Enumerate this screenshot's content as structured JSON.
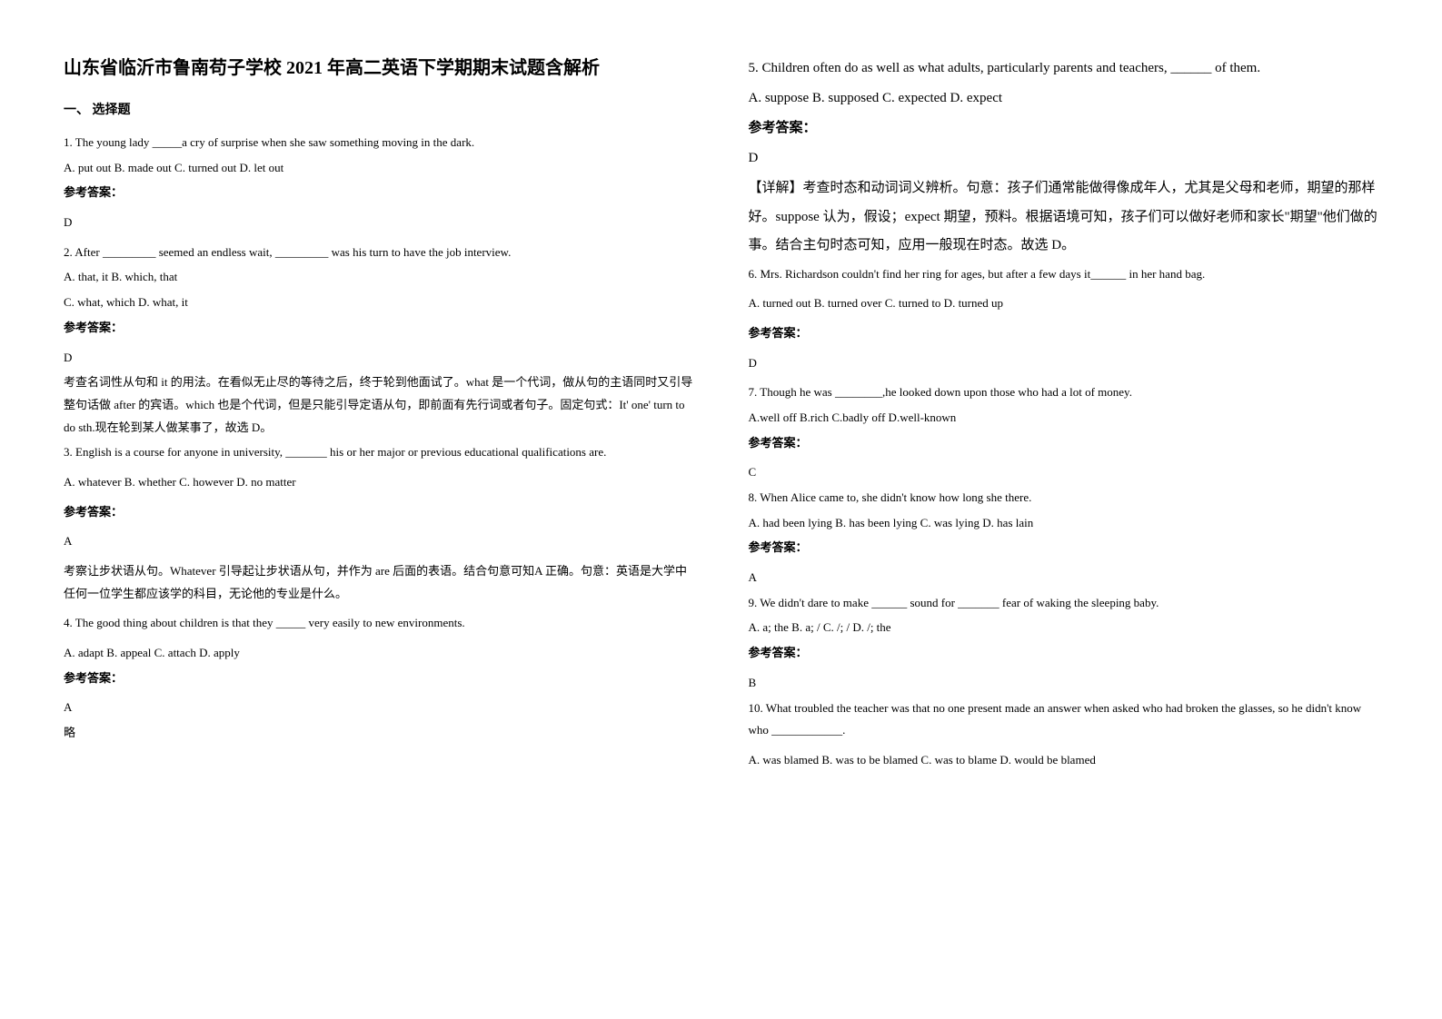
{
  "title": "山东省临沂市鲁南苟子学校 2021 年高二英语下学期期末试题含解析",
  "section_header": "一、 选择题",
  "questions": {
    "q1": {
      "text": "1. The young lady _____a cry of surprise when she saw something moving in the dark.",
      "options": "A. put out      B. made out    C. turned out     D. let out",
      "answer_label": "参考答案：",
      "answer": "D"
    },
    "q2": {
      "text": "2. After _________ seemed an endless wait, _________ was his turn to have the job interview.",
      "options_line1": "A. that, it   B. which, that",
      "options_line2": "C. what, which   D. what, it",
      "answer_label": "参考答案：",
      "answer": "D",
      "explanation_1": "考查名词性从句和 it 的用法。在看似无止尽的等待之后，终于轮到他面试了。what 是一个代词，做从句的主语同时又引导整句话做 after 的宾语。which 也是个代词，但是只能引导定语从句，即前面有先行词或者句子。固定句式：It' one' turn to do sth.现在轮到某人做某事了，故选 D。"
    },
    "q3": {
      "text": "3. English is a course for anyone in university, _______ his or her major or previous educational qualifications are.",
      "options": "A. whatever                  B. whether                  C. however                     D. no matter",
      "answer_label": "参考答案：",
      "answer": "A",
      "explanation_1": "考察让步状语从句。Whatever 引导起让步状语从句，并作为 are 后面的表语。结合句意可知A 正确。句意：英语是大学中任何一位学生都应该学的科目，无论他的专业是什么。"
    },
    "q4": {
      "text": "4. The good thing about children is that they _____ very easily to new environments.",
      "options": "A. adapt       B. appeal       C. attach         D. apply",
      "answer_label": "参考答案：",
      "answer": "A",
      "note": "略"
    },
    "q5": {
      "text": "5. Children often do as well as what adults, particularly parents and teachers, ______ of them.",
      "options": "A. suppose   B. supposed C. expected  D. expect",
      "answer_label": "参考答案：",
      "answer": "D",
      "explanation_1": "【详解】考查时态和动词词义辨析。句意：孩子们通常能做得像成年人，尤其是父母和老师，期望的那样好。suppose 认为，假设；expect 期望，预料。根据语境可知，孩子们可以做好老师和家长\"期望\"他们做的事。结合主句时态可知，应用一般现在时态。故选 D。"
    },
    "q6": {
      "text": "6. Mrs. Richardson couldn't find her ring for ages, but after a few days it______ in her hand bag.",
      "options": "A. turned out     B. turned over        C. turned to      D. turned up",
      "answer_label": "参考答案：",
      "answer": "D"
    },
    "q7": {
      "text": "7. Though he was ________,he looked down upon those who had a lot of money.",
      "options": "A.well off    B.rich    C.badly off   D.well-known",
      "answer_label": "参考答案：",
      "answer": "C"
    },
    "q8": {
      "text": "8. When Alice came to, she didn't know how long she              there.",
      "options": "A. had been lying                 B. has been lying                 C. was lying                            D. has lain",
      "answer_label": "参考答案：",
      "answer": "A"
    },
    "q9": {
      "text": "9. We didn't dare to make ______ sound for _______ fear of waking the sleeping baby.",
      "options": "   A. a; the       B. a; /       C. /; /       D. /; the",
      "answer_label": "参考答案：",
      "answer": "B"
    },
    "q10": {
      "text": "10. What troubled the teacher was that no one present made an answer when asked who had broken the glasses, so he didn't know who ____________.",
      "options": "A. was blamed    B. was to be blamed   C. was to blame    D. would be blamed"
    }
  }
}
